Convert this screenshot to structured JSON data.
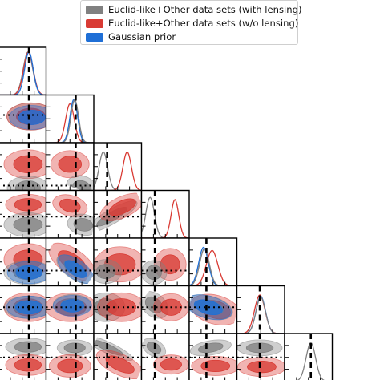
{
  "chart_data": {
    "type": "corner-plot",
    "parameters": 8,
    "legend": {
      "placement": "top-center",
      "entries": [
        {
          "label": "Euclid-like+Other data sets (with lensing)",
          "color": "#808080"
        },
        {
          "label": "Euclid-like+Other data sets (w/o lensing)",
          "color": "#d93b34"
        },
        {
          "label": "Gaussian prior",
          "color": "#1f6fd6"
        }
      ]
    },
    "fiducial_line_style": "dashed",
    "secondary_line_style": "dotted",
    "colors": {
      "with_lensing": "#808080",
      "without_lensing": "#d93b34",
      "gaussian_prior": "#1f6fd6"
    }
  }
}
